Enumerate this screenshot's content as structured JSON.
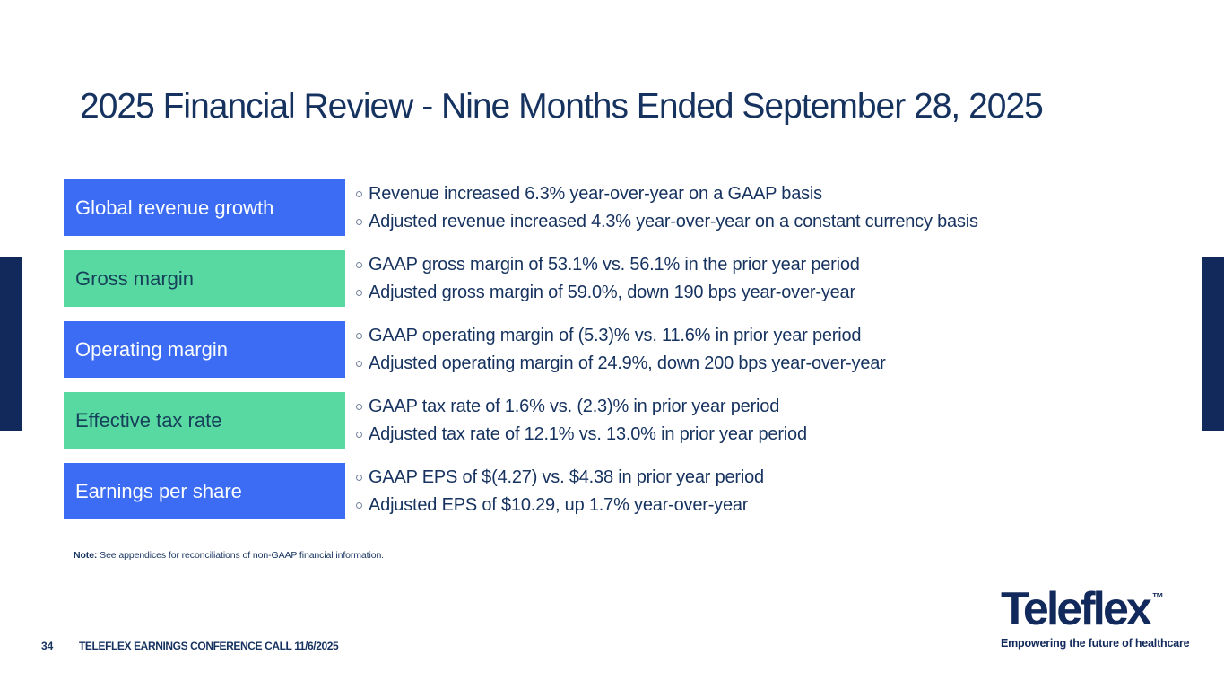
{
  "slide": {
    "title": "2025 Financial Review - Nine Months Ended September 28, 2025",
    "rows": [
      {
        "label": "Global revenue growth",
        "color": "blue",
        "bullets": [
          "Revenue increased 6.3% year-over-year on a GAAP basis",
          "Adjusted revenue increased 4.3% year-over-year on a constant currency basis"
        ]
      },
      {
        "label": "Gross margin",
        "color": "green",
        "bullets": [
          "GAAP gross margin of 53.1% vs. 56.1% in the prior year period",
          "Adjusted gross margin of 59.0%, down 190 bps year-over-year"
        ]
      },
      {
        "label": "Operating margin",
        "color": "blue",
        "bullets": [
          "GAAP operating margin of (5.3)% vs. 11.6% in prior year period",
          "Adjusted operating margin of 24.9%, down 200 bps year-over-year"
        ]
      },
      {
        "label": "Effective tax rate",
        "color": "green",
        "bullets": [
          "GAAP tax rate of 1.6% vs. (2.3)% in prior year period",
          "Adjusted tax rate of 12.1% vs. 13.0% in prior year period"
        ]
      },
      {
        "label": "Earnings per share",
        "color": "blue",
        "bullets": [
          "GAAP EPS of $(4.27) vs. $4.38 in prior year period",
          "Adjusted EPS of $10.29, up 1.7% year-over-year"
        ]
      }
    ],
    "note_label": "Note:",
    "note_text": " See appendices for reconciliations of non-GAAP financial information.",
    "footer": {
      "page_number": "34",
      "text": "TELEFLEX EARNINGS CONFERENCE CALL 11/6/2025"
    },
    "logo": {
      "wordmark": "Teleflex",
      "trademark": "™",
      "tagline": "Empowering the future of healthcare"
    },
    "colors": {
      "navy": "#16325F",
      "bar_navy": "#12295B",
      "blue": "#3B6CF3",
      "green": "#58D9A2",
      "label_on_green": "#164059"
    }
  }
}
